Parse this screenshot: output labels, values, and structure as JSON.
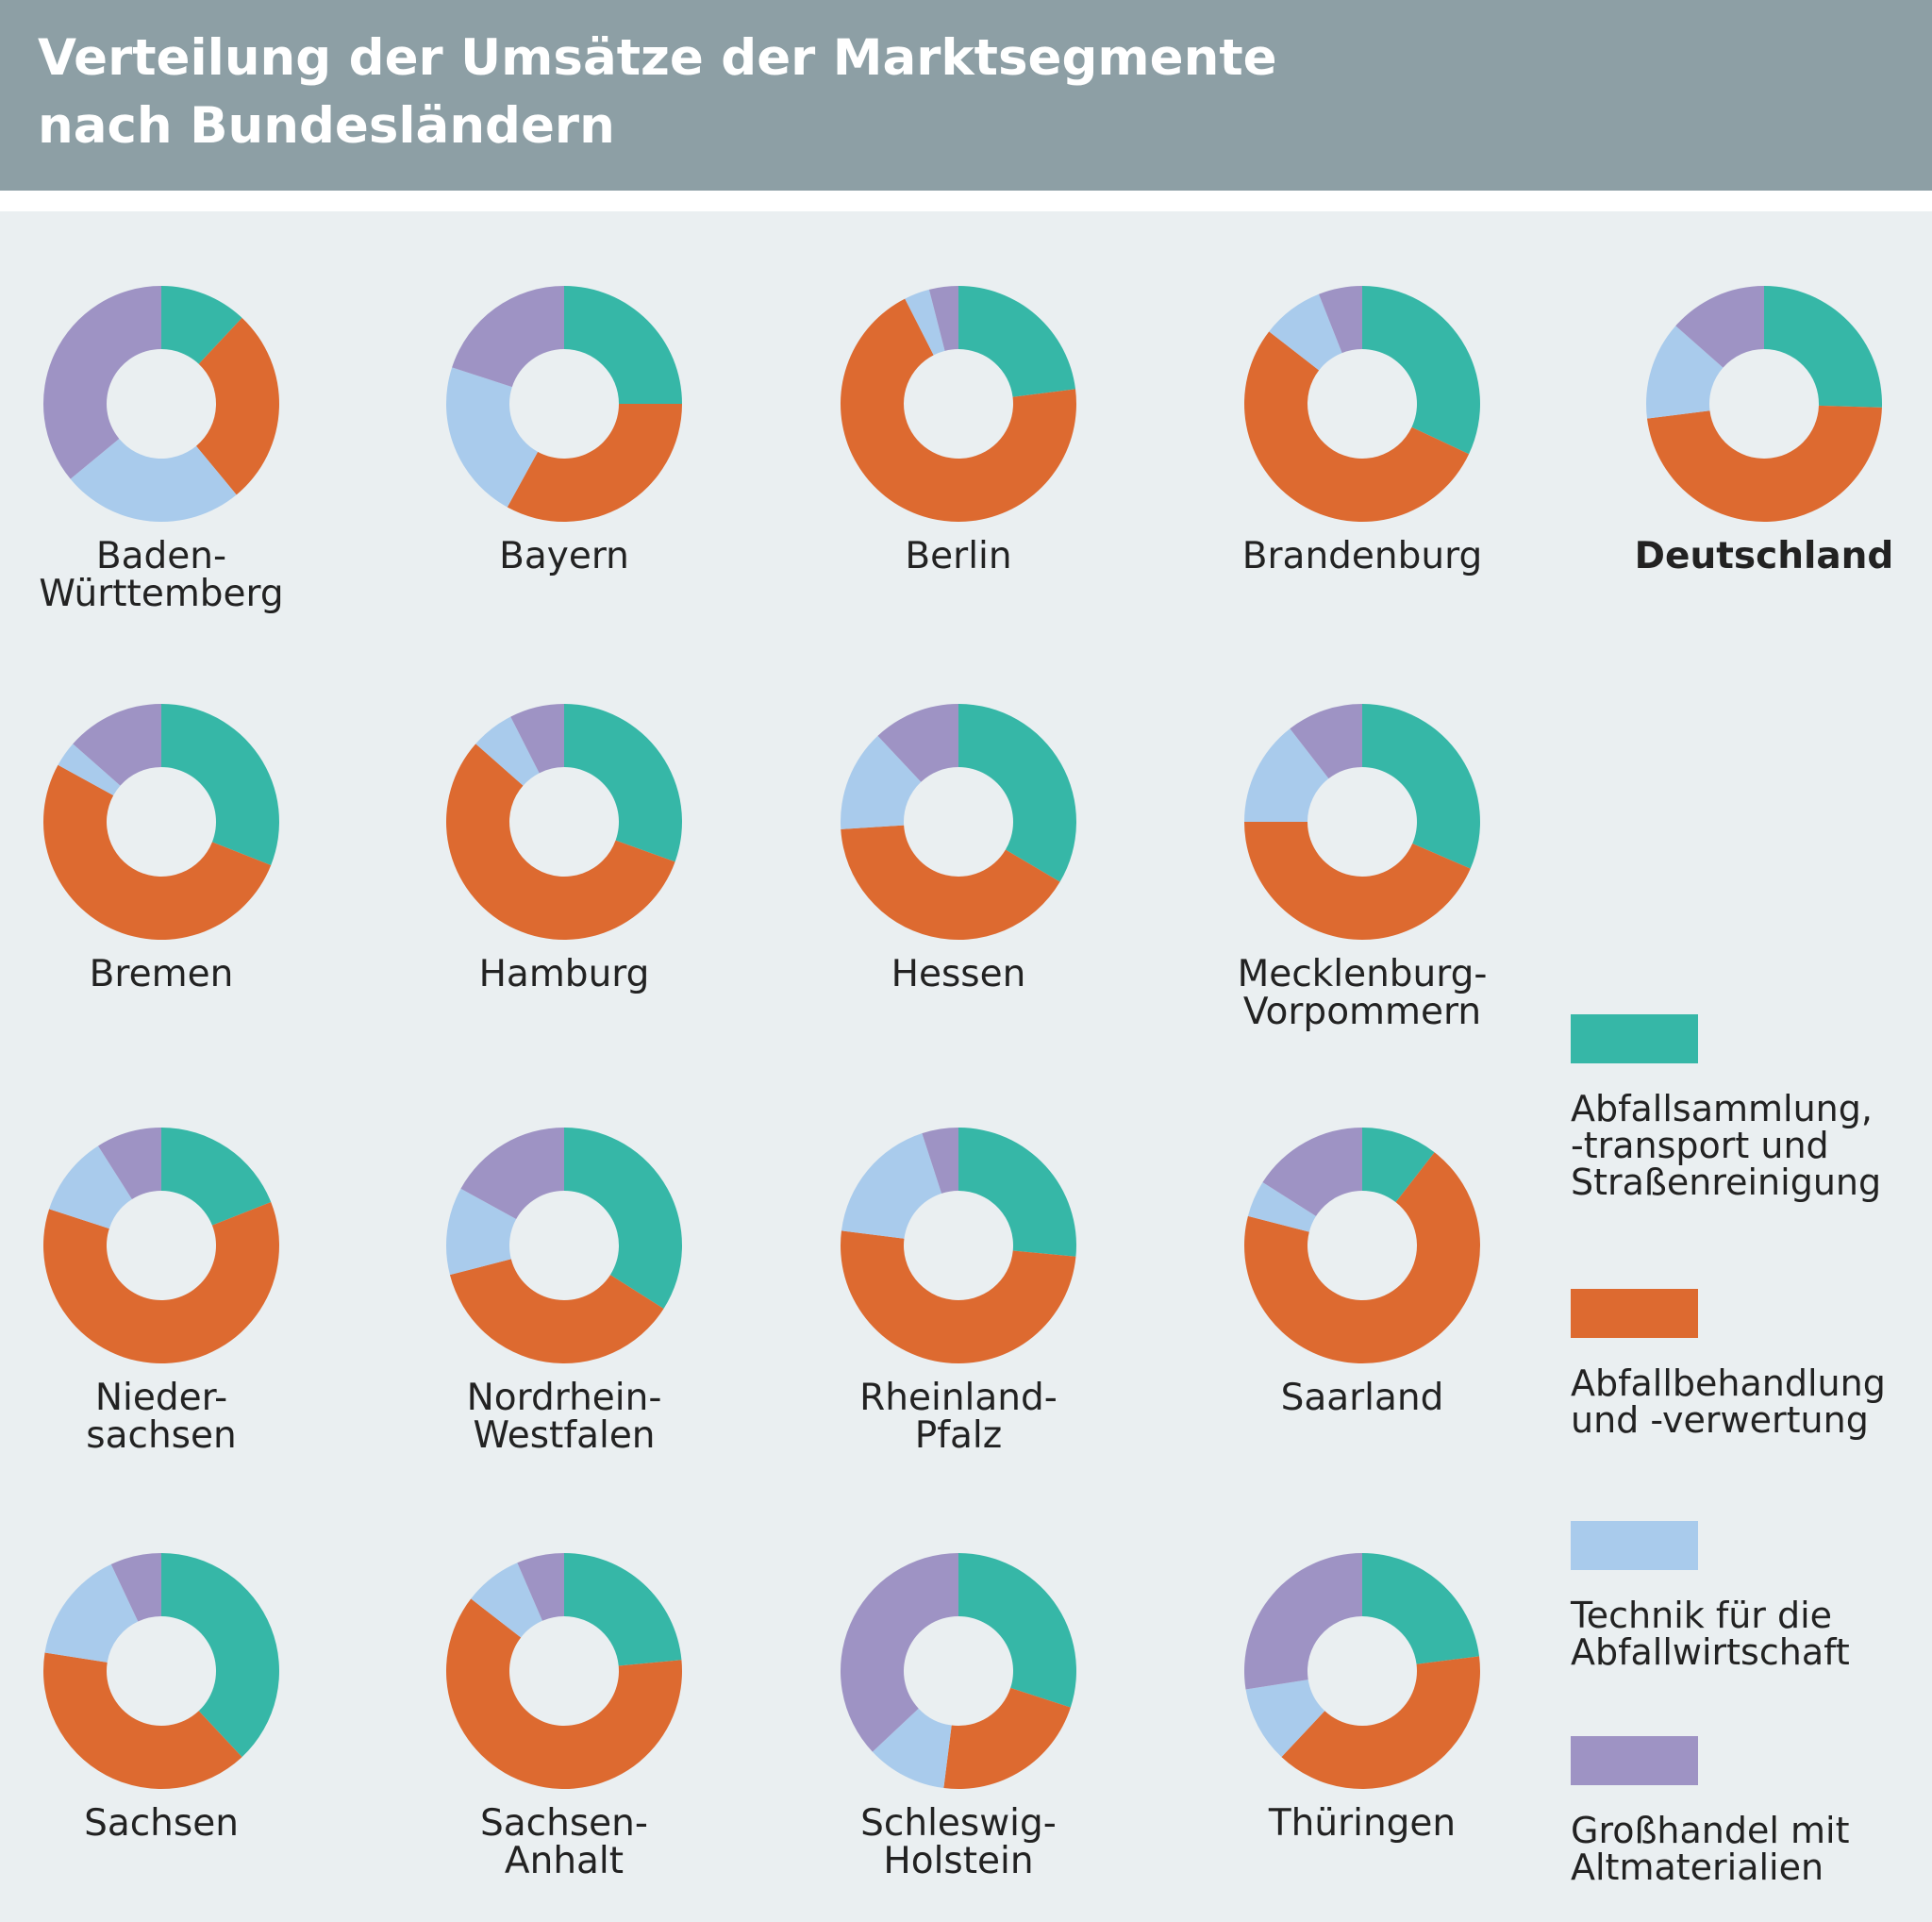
{
  "title": [
    "Verteilung der Umsätze der Marktsegmente",
    "nach Bundesländern"
  ],
  "colors": {
    "header": "#8d9fa5",
    "background": "#eaeff1"
  },
  "chart_data": {
    "type": "donut",
    "unit": "percent share",
    "segments": [
      {
        "name": "Abfallsammlung, -transport und Straßenreinigung",
        "legend_lines": [
          "Abfallsammlung,",
          "-transport und",
          "Straßenreinigung"
        ],
        "color": "#36b7a7"
      },
      {
        "name": "Abfallbehandlung und -verwertung",
        "legend_lines": [
          "Abfallbehandlung",
          "und -verwertung"
        ],
        "color": "#dd6a30"
      },
      {
        "name": "Technik für die Abfallwirtschaft",
        "legend_lines": [
          "Technik für die",
          "Abfallwirtschaft"
        ],
        "color": "#a9cbec"
      },
      {
        "name": "Großhandel mit Altmaterialien",
        "legend_lines": [
          "Großhandel mit",
          "Altmaterialien"
        ],
        "color": "#9e93c4"
      }
    ],
    "charts": [
      {
        "label": [
          "Baden-",
          "Württemberg"
        ],
        "values": [
          12,
          27,
          25,
          36
        ]
      },
      {
        "label": [
          "Bayern"
        ],
        "values": [
          25,
          33,
          22,
          20
        ]
      },
      {
        "label": [
          "Berlin"
        ],
        "values": [
          23,
          69.5,
          3.5,
          4
        ]
      },
      {
        "label": [
          "Brandenburg"
        ],
        "values": [
          32,
          53.5,
          8.5,
          6
        ]
      },
      {
        "label": [
          "Deutschland"
        ],
        "values": [
          25.5,
          47.5,
          13.5,
          13.5
        ],
        "bold": true
      },
      {
        "label": [
          "Bremen"
        ],
        "values": [
          31,
          52,
          3.5,
          13.5
        ]
      },
      {
        "label": [
          "Hamburg"
        ],
        "values": [
          30.5,
          56,
          6,
          7.5
        ]
      },
      {
        "label": [
          "Hessen"
        ],
        "values": [
          33.5,
          40.5,
          14,
          12
        ]
      },
      {
        "label": [
          "Mecklenburg-",
          "Vorpommern"
        ],
        "values": [
          31.5,
          43.5,
          14.5,
          10.5
        ]
      },
      {
        "label": [
          "Nieder-",
          "sachsen"
        ],
        "values": [
          19,
          61,
          11,
          9
        ]
      },
      {
        "label": [
          "Nordrhein-",
          "Westfalen"
        ],
        "values": [
          34,
          37,
          12,
          17
        ]
      },
      {
        "label": [
          "Rheinland-",
          "Pfalz"
        ],
        "values": [
          26.5,
          50.5,
          18,
          5
        ]
      },
      {
        "label": [
          "Saarland"
        ],
        "values": [
          10.5,
          68.5,
          5,
          16
        ]
      },
      {
        "label": [
          "Sachsen"
        ],
        "values": [
          38,
          39.5,
          15.5,
          7
        ]
      },
      {
        "label": [
          "Sachsen-",
          "Anhalt"
        ],
        "values": [
          23.5,
          62,
          8,
          6.5
        ]
      },
      {
        "label": [
          "Schleswig-",
          "Holstein"
        ],
        "values": [
          30,
          22,
          11,
          37
        ]
      },
      {
        "label": [
          "Thüringen"
        ],
        "values": [
          23,
          39,
          10.5,
          27.5
        ]
      }
    ]
  }
}
